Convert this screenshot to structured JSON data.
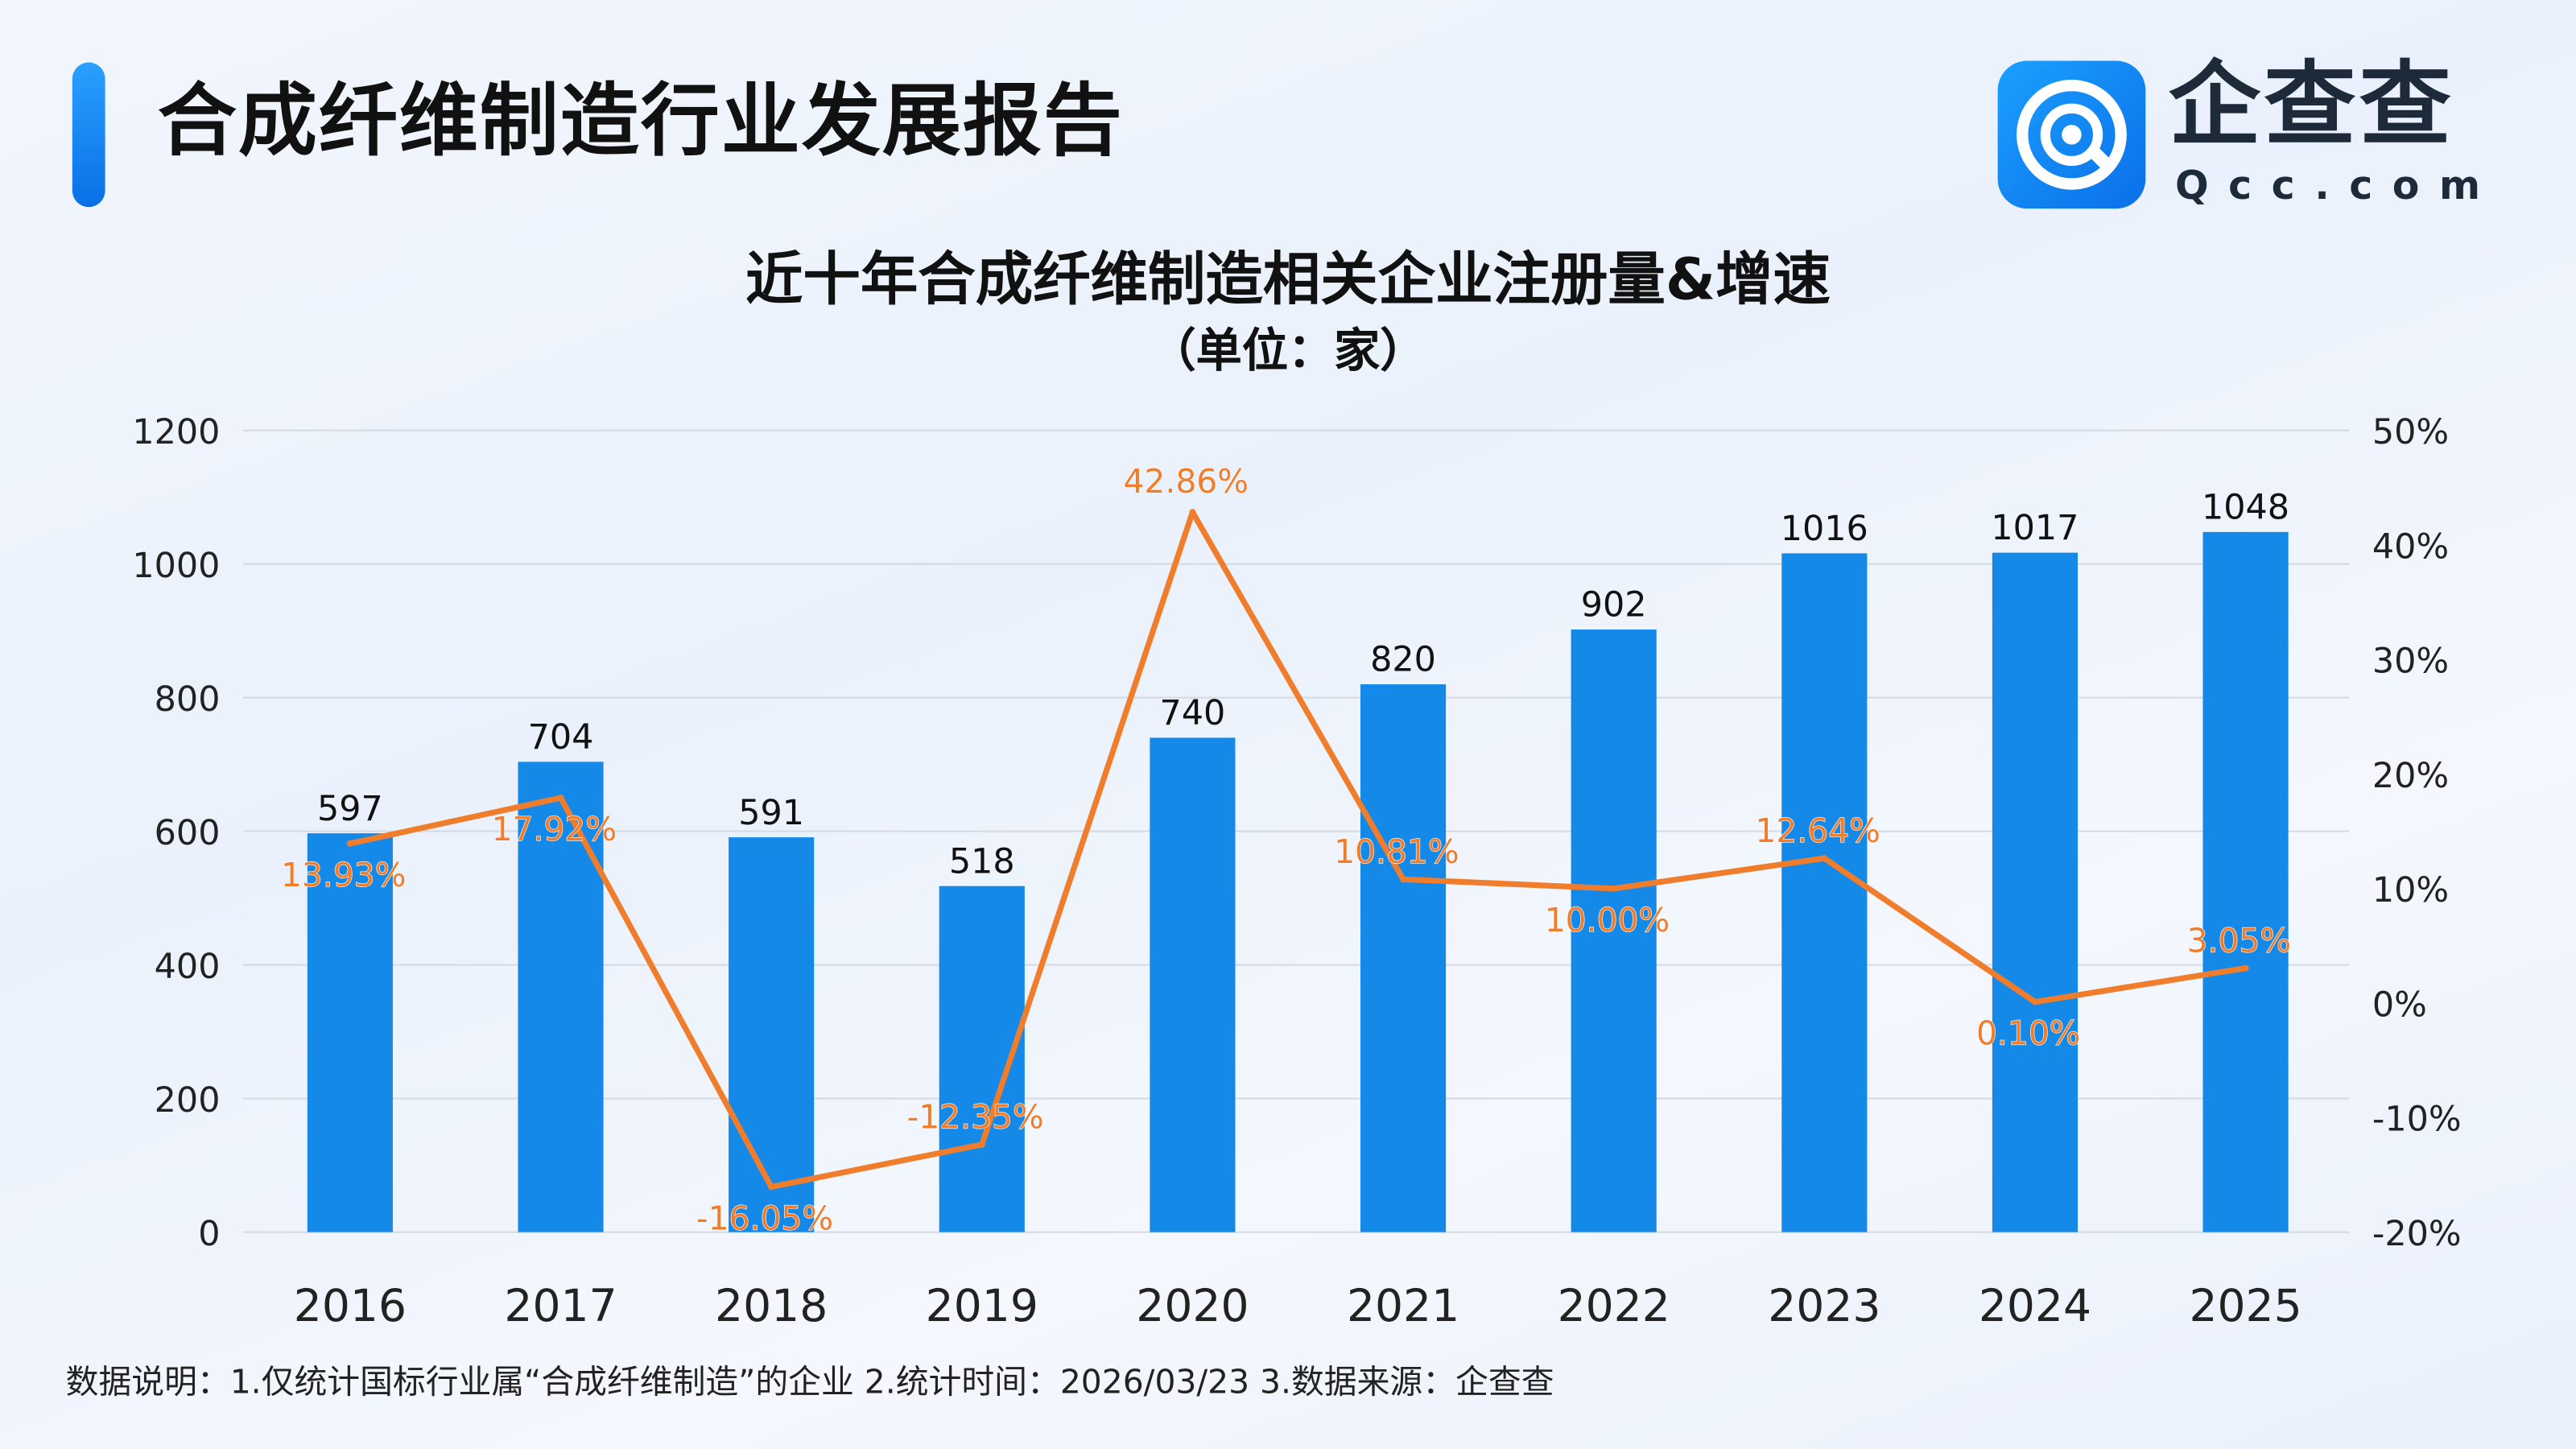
{
  "header": {
    "title": "合成纤维制造行业发展报告",
    "brand_name": "企查查",
    "brand_domain": "Qcc.com"
  },
  "chart_data": {
    "type": "bar+line",
    "title": "近十年合成纤维制造相关企业注册量&增速",
    "subtitle": "（单位：家）",
    "categories": [
      "2016",
      "2017",
      "2018",
      "2019",
      "2020",
      "2021",
      "2022",
      "2023",
      "2024",
      "2025"
    ],
    "series": [
      {
        "type": "bar",
        "axis": "left",
        "color": "#1589e8",
        "values": [
          597,
          704,
          591,
          518,
          740,
          820,
          902,
          1016,
          1017,
          1048
        ],
        "labels": [
          "597",
          "704",
          "591",
          "518",
          "740",
          "820",
          "902",
          "1016",
          "1017",
          "1048"
        ]
      },
      {
        "type": "line",
        "axis": "right",
        "color": "#ef7d2c",
        "values": [
          13.93,
          17.92,
          -16.05,
          -12.35,
          42.86,
          10.81,
          10.0,
          12.64,
          0.1,
          3.05
        ],
        "labels": [
          "13.93%",
          "17.92%",
          "-16.05%",
          "-12.35%",
          "42.86%",
          "10.81%",
          "10.00%",
          "12.64%",
          "0.10%",
          "3.05%"
        ]
      }
    ],
    "left_axis": {
      "ylim": [
        0,
        1200
      ],
      "ticks": [
        "0",
        "200",
        "400",
        "600",
        "800",
        "1000",
        "1200"
      ]
    },
    "right_axis": {
      "ylim": [
        -20,
        50
      ],
      "ticks": [
        "-20%",
        "-10%",
        "0%",
        "10%",
        "20%",
        "30%",
        "40%",
        "50%"
      ]
    },
    "grid": true
  },
  "footer": {
    "note": "数据说明：1.仅统计国标行业属“合成纤维制造”的企业   2.统计时间：2026/03/23   3.数据来源：企查查"
  }
}
